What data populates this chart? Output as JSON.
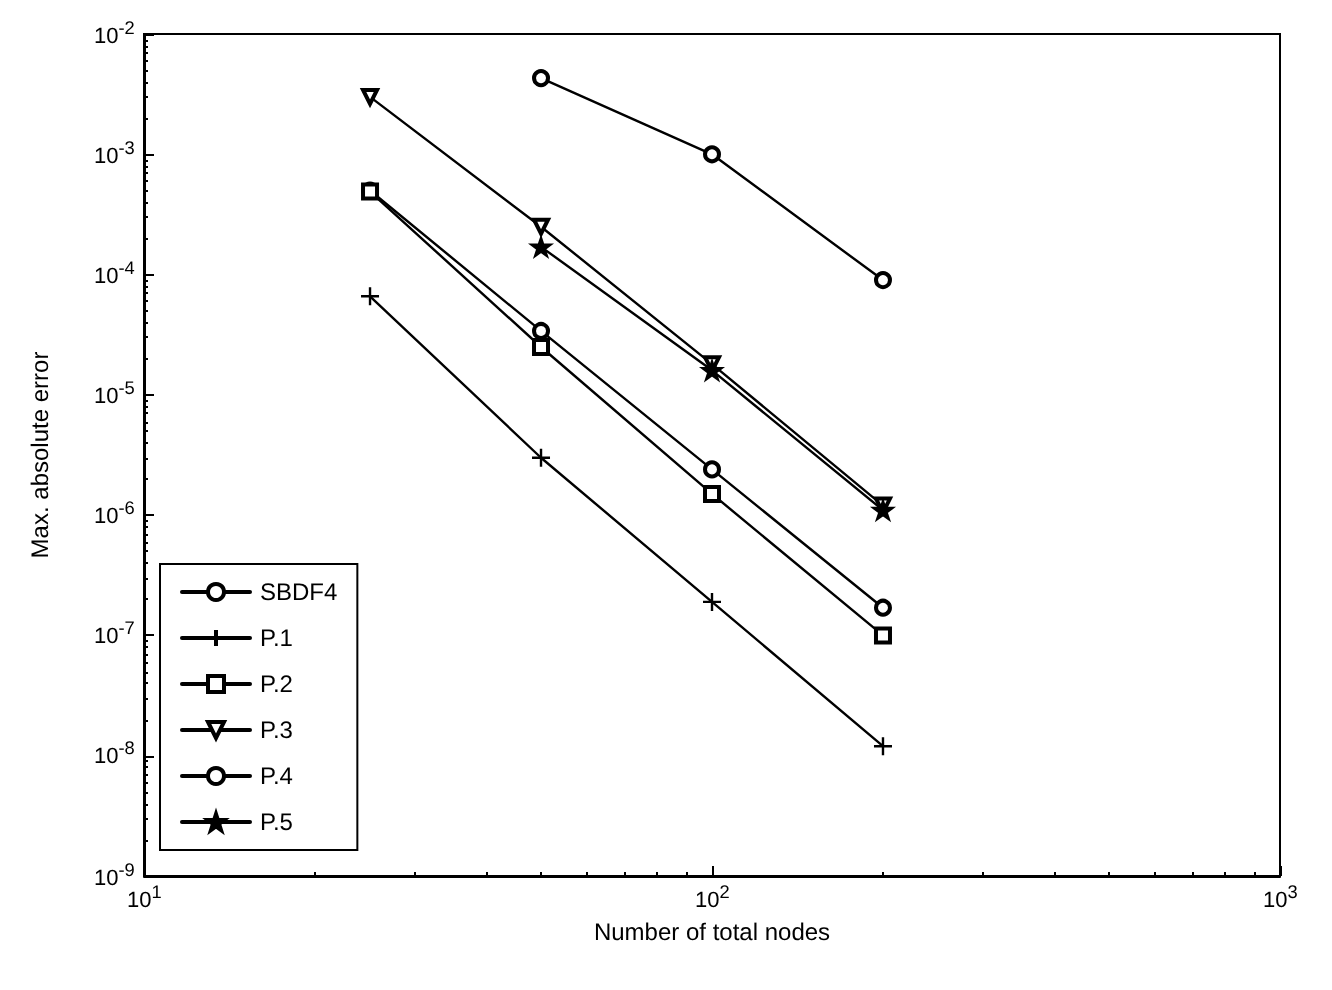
{
  "chart_data": {
    "type": "line",
    "xlabel": "Number of total nodes",
    "ylabel": "Max. absolute error",
    "log": "xy",
    "grid": false,
    "legend": "bottom left",
    "xlim": [
      10,
      1000
    ],
    "xticks": [
      {
        "value": 10,
        "label": "10$^{1}$"
      },
      {
        "value": 100,
        "label": "10$^{2}$"
      },
      {
        "value": 1000,
        "label": "10$^{3}$"
      }
    ],
    "ylim": [
      1e-09,
      0.01
    ],
    "yticks": [
      {
        "value": 1e-09,
        "label": "10$^{-9}$"
      },
      {
        "value": 1e-08,
        "label": "10$^{-8}$"
      },
      {
        "value": 1e-07,
        "label": "10$^{-7}$"
      },
      {
        "value": 1e-06,
        "label": "10$^{-6}$"
      },
      {
        "value": 1e-05,
        "label": "10$^{-5}$"
      },
      {
        "value": 0.0001,
        "label": "10$^{-4}$"
      },
      {
        "value": 0.001,
        "label": "10$^{-3}$"
      },
      {
        "value": 0.01,
        "label": "10$^{-2}$"
      }
    ],
    "series": [
      {
        "name": "SBDF4",
        "color": "#000000",
        "marker": "circle",
        "x": [
          25,
          50,
          100,
          200
        ],
        "values": [
          0.0005,
          3.4e-05,
          2.4e-06,
          1.7e-07
        ]
      },
      {
        "name": "P.1",
        "color": "#000000",
        "marker": "cross",
        "x": [
          25,
          50,
          100,
          200
        ],
        "values": [
          6.6e-05,
          3e-06,
          1.9e-07,
          1.2e-08
        ]
      },
      {
        "name": "P.2",
        "color": "#000000",
        "marker": "square",
        "x": [
          25,
          50,
          100,
          200
        ],
        "values": [
          0.00049,
          2.5e-05,
          1.5e-06,
          1e-07
        ]
      },
      {
        "name": "P.3",
        "color": "#000000",
        "marker": "triangle",
        "x": [
          25,
          50,
          100,
          200
        ],
        "values": [
          0.003,
          0.00025,
          1.8e-05,
          1.2e-06
        ]
      },
      {
        "name": "P.4",
        "color": "#000000",
        "marker": "circle",
        "x": [
          50,
          100,
          200
        ],
        "values": [
          0.0043,
          0.001,
          9e-05
        ]
      },
      {
        "name": "P.5",
        "color": "#000000",
        "marker": "star",
        "x": [
          50,
          100,
          200
        ],
        "values": [
          0.00017,
          1.6e-05,
          1.1e-06
        ]
      }
    ]
  }
}
